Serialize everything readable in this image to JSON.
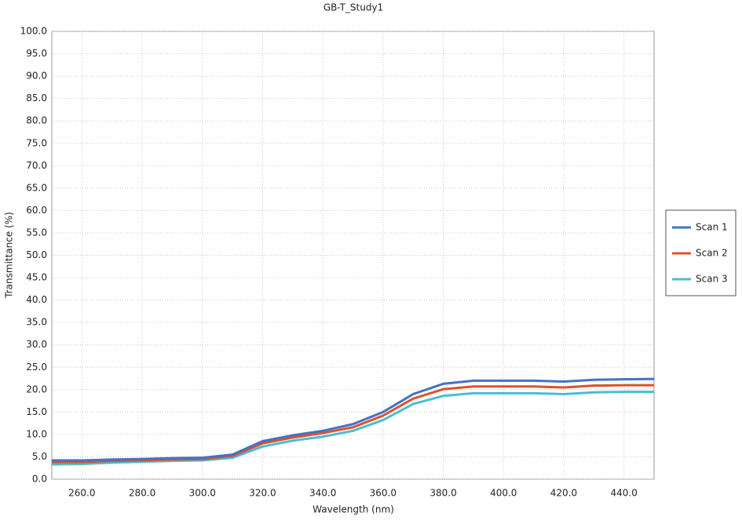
{
  "chart_data": {
    "type": "line",
    "title": "GB-T_Study1",
    "x_label": "Wavelength (nm)",
    "y_label": "Transmittance (%)",
    "x": [
      250,
      260,
      270,
      280,
      290,
      300,
      310,
      320,
      330,
      340,
      350,
      360,
      370,
      380,
      390,
      400,
      410,
      420,
      430,
      440,
      450
    ],
    "series": [
      {
        "name": "Scan 1",
        "color": "#4472c4",
        "values": [
          4.2,
          4.2,
          4.4,
          4.5,
          4.7,
          4.8,
          5.5,
          8.5,
          9.8,
          10.8,
          12.3,
          15,
          19,
          21.3,
          22,
          22,
          22,
          21.8,
          22.2,
          22.3,
          22.4
        ]
      },
      {
        "name": "Scan 2",
        "color": "#e0502a",
        "values": [
          3.8,
          3.8,
          4.1,
          4.2,
          4.4,
          4.5,
          5.2,
          8,
          9.3,
          10.3,
          11.6,
          14.2,
          18,
          20.1,
          20.7,
          20.7,
          20.7,
          20.5,
          20.9,
          21,
          21
        ]
      },
      {
        "name": "Scan 3",
        "color": "#4bbdd0",
        "values": [
          3.3,
          3.4,
          3.7,
          3.9,
          4.1,
          4.2,
          4.8,
          7.3,
          8.6,
          9.5,
          10.8,
          13.2,
          16.8,
          18.6,
          19.2,
          19.2,
          19.2,
          19,
          19.4,
          19.5,
          19.5
        ]
      }
    ],
    "xlim": [
      250,
      450
    ],
    "xticks": [
      {
        "value": 260,
        "label": "260.0"
      },
      {
        "value": 280,
        "label": "280.0"
      },
      {
        "value": 300,
        "label": "300.0"
      },
      {
        "value": 320,
        "label": "320.0"
      },
      {
        "value": 340,
        "label": "340.0"
      },
      {
        "value": 360,
        "label": "360.0"
      },
      {
        "value": 380,
        "label": "380.0"
      },
      {
        "value": 400,
        "label": "400.0"
      },
      {
        "value": 420,
        "label": "420.0"
      },
      {
        "value": 440,
        "label": "440.0"
      }
    ],
    "ylim": [
      0,
      100
    ],
    "yticks": [
      {
        "value": 0,
        "label": "0.0"
      },
      {
        "value": 5,
        "label": "5.0"
      },
      {
        "value": 10,
        "label": "10.0"
      },
      {
        "value": 15,
        "label": "15.0"
      },
      {
        "value": 20,
        "label": "20.0"
      },
      {
        "value": 25,
        "label": "25.0"
      },
      {
        "value": 30,
        "label": "30.0"
      },
      {
        "value": 35,
        "label": "35.0"
      },
      {
        "value": 40,
        "label": "40.0"
      },
      {
        "value": 45,
        "label": "45.0"
      },
      {
        "value": 50,
        "label": "50.0"
      },
      {
        "value": 55,
        "label": "55.0"
      },
      {
        "value": 60,
        "label": "60.0"
      },
      {
        "value": 65,
        "label": "65.0"
      },
      {
        "value": 70,
        "label": "70.0"
      },
      {
        "value": 75,
        "label": "75.0"
      },
      {
        "value": 80,
        "label": "80.0"
      },
      {
        "value": 85,
        "label": "85.0"
      },
      {
        "value": 90,
        "label": "90.0"
      },
      {
        "value": 95,
        "label": "95.0"
      },
      {
        "value": 100,
        "label": "100.0"
      }
    ],
    "grid": true,
    "legend": "right"
  }
}
